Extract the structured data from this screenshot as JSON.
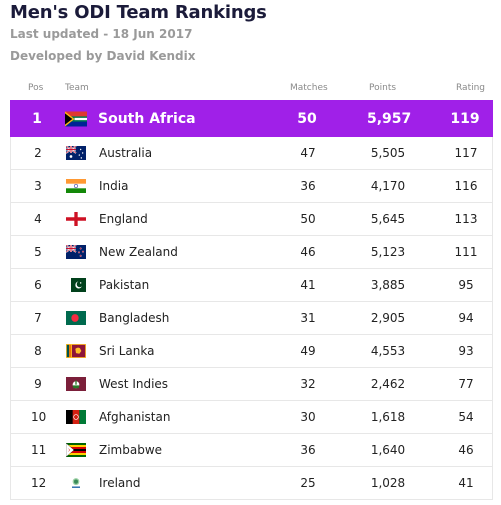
{
  "header": {
    "title": "Men's ODI Team Rankings",
    "last_updated": "Last updated - 18 Jun 2017",
    "developer": "Developed by David Kendix"
  },
  "table": {
    "columns": {
      "pos": "Pos",
      "team": "Team",
      "matches": "Matches",
      "points": "Points",
      "rating": "Rating"
    },
    "highlight_color": "#a020e8",
    "rows": [
      {
        "pos": "1",
        "team": "South Africa",
        "flag": "south-africa-flag",
        "matches": "50",
        "points": "5,957",
        "rating": "119"
      },
      {
        "pos": "2",
        "team": "Australia",
        "flag": "australia-flag",
        "matches": "47",
        "points": "5,505",
        "rating": "117"
      },
      {
        "pos": "3",
        "team": "India",
        "flag": "india-flag",
        "matches": "36",
        "points": "4,170",
        "rating": "116"
      },
      {
        "pos": "4",
        "team": "England",
        "flag": "england-flag",
        "matches": "50",
        "points": "5,645",
        "rating": "113"
      },
      {
        "pos": "5",
        "team": "New Zealand",
        "flag": "new-zealand-flag",
        "matches": "46",
        "points": "5,123",
        "rating": "111"
      },
      {
        "pos": "6",
        "team": "Pakistan",
        "flag": "pakistan-flag",
        "matches": "41",
        "points": "3,885",
        "rating": "95"
      },
      {
        "pos": "7",
        "team": "Bangladesh",
        "flag": "bangladesh-flag",
        "matches": "31",
        "points": "2,905",
        "rating": "94"
      },
      {
        "pos": "8",
        "team": "Sri Lanka",
        "flag": "sri-lanka-flag",
        "matches": "49",
        "points": "4,553",
        "rating": "93"
      },
      {
        "pos": "9",
        "team": "West Indies",
        "flag": "west-indies-flag",
        "matches": "32",
        "points": "2,462",
        "rating": "77"
      },
      {
        "pos": "10",
        "team": "Afghanistan",
        "flag": "afghanistan-flag",
        "matches": "30",
        "points": "1,618",
        "rating": "54"
      },
      {
        "pos": "11",
        "team": "Zimbabwe",
        "flag": "zimbabwe-flag",
        "matches": "36",
        "points": "1,640",
        "rating": "46"
      },
      {
        "pos": "12",
        "team": "Ireland",
        "flag": "ireland-flag",
        "matches": "25",
        "points": "1,028",
        "rating": "41"
      }
    ]
  }
}
